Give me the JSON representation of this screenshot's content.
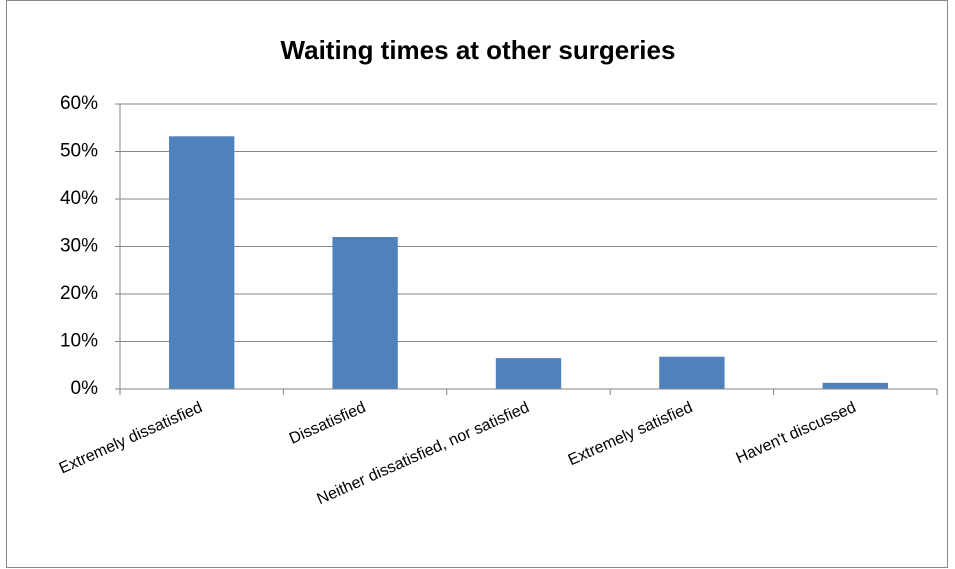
{
  "chart_data": {
    "type": "bar",
    "title": "Waiting times at other surgeries",
    "categories": [
      "Extremely dissatisfied",
      "Dissatisfied",
      "Neither dissatisfied, nor satisfied",
      "Extremely satisfied",
      "Haven't discussed"
    ],
    "values": [
      53.2,
      32,
      6.5,
      6.8,
      1.3
    ],
    "color": "#4f81bd",
    "ylim": [
      0,
      60
    ],
    "yticks": [
      {
        "value": 0,
        "label": "0%"
      },
      {
        "value": 10,
        "label": "10%"
      },
      {
        "value": 20,
        "label": "20%"
      },
      {
        "value": 30,
        "label": "30%"
      },
      {
        "value": 40,
        "label": "40%"
      },
      {
        "value": 50,
        "label": "50%"
      },
      {
        "value": 60,
        "label": "60%"
      }
    ],
    "grid": true
  }
}
